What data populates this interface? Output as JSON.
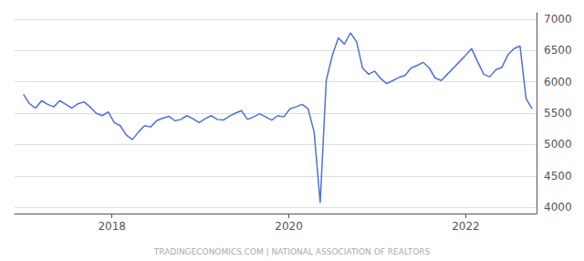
{
  "chart_data": {
    "type": "line",
    "annotations": [
      "TRADINGECONOMICS.COM | NATIONAL ASSOCIATION OF REALTORS"
    ],
    "x": [
      2017,
      2017.0685,
      2017.1369,
      2017.2054,
      2017.2738,
      2017.3423,
      2017.4107,
      2017.4792,
      2017.5476,
      2017.6161,
      2017.6845,
      2017.753,
      2017.8214,
      2017.8899,
      2017.9583,
      2018.0268,
      2018.0952,
      2018.1637,
      2018.2321,
      2018.3006,
      2018.369,
      2018.4375,
      2018.506,
      2018.5744,
      2018.6429,
      2018.7113,
      2018.7798,
      2018.8482,
      2018.9167,
      2018.9851,
      2019.0536,
      2019.122,
      2019.1905,
      2019.2589,
      2019.3274,
      2019.3958,
      2019.4643,
      2019.5327,
      2019.6012,
      2019.6696,
      2019.7381,
      2019.8065,
      2019.875,
      2019.9435,
      2020.0119,
      2020.0804,
      2020.1488,
      2020.2173,
      2020.2857,
      2020.3542,
      2020.4226,
      2020.4911,
      2020.5595,
      2020.628,
      2020.6964,
      2020.7649,
      2020.8333,
      2020.9018,
      2020.9702,
      2021.0387,
      2021.1071,
      2021.1756,
      2021.244,
      2021.3125,
      2021.381,
      2021.4494,
      2021.5179,
      2021.5863,
      2021.6548,
      2021.7232,
      2021.7917,
      2021.8601,
      2021.9286,
      2021.997,
      2022.0655,
      2022.1339,
      2022.2024,
      2022.2708,
      2022.3393,
      2022.4077,
      2022.4762,
      2022.5446,
      2022.6131,
      2022.6815,
      2022.75
    ],
    "values": [
      5800,
      5650,
      5580,
      5700,
      5640,
      5600,
      5700,
      5640,
      5580,
      5650,
      5680,
      5600,
      5500,
      5460,
      5520,
      5350,
      5300,
      5150,
      5080,
      5200,
      5300,
      5280,
      5380,
      5420,
      5450,
      5380,
      5400,
      5460,
      5410,
      5350,
      5410,
      5460,
      5400,
      5390,
      5450,
      5500,
      5540,
      5400,
      5440,
      5490,
      5440,
      5390,
      5460,
      5440,
      5570,
      5600,
      5640,
      5570,
      5200,
      4070,
      6020,
      6420,
      6700,
      6600,
      6780,
      6640,
      6220,
      6120,
      6170,
      6050,
      5970,
      6020,
      6070,
      6100,
      6220,
      6260,
      6310,
      6220,
      6060,
      6020,
      6120,
      6220,
      6320,
      6420,
      6530,
      6320,
      6120,
      6080,
      6190,
      6230,
      6430,
      6530,
      6570,
      5730,
      5570
    ],
    "xlim": [
      2016.9,
      2022.8
    ],
    "xticks": [
      2018,
      2020,
      2022
    ],
    "ylim": [
      3900,
      7100
    ],
    "yticks": [
      4000,
      4500,
      5000,
      5500,
      6000,
      6500,
      7000
    ],
    "grid": true
  }
}
